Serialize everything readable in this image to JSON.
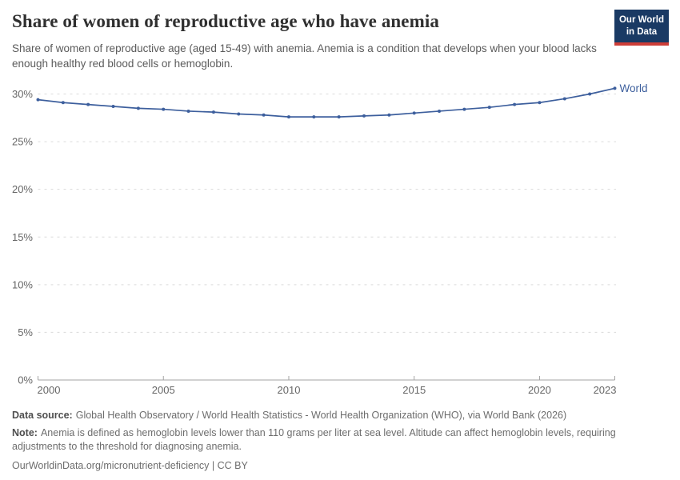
{
  "header": {
    "title": "Share of women of reproductive age who have anemia",
    "subtitle": "Share of women of reproductive age (aged 15-49) with anemia. Anemia is a condition that develops when your blood lacks enough healthy red blood cells or hemoglobin."
  },
  "logo": {
    "line1": "Our World",
    "line2": "in Data",
    "bg_color": "#1a3a64",
    "accent_color": "#cd3d37"
  },
  "chart_data": {
    "type": "line",
    "title": "Share of women of reproductive age who have anemia",
    "xlabel": "",
    "ylabel": "",
    "x": [
      2000,
      2001,
      2002,
      2003,
      2004,
      2005,
      2006,
      2007,
      2008,
      2009,
      2010,
      2011,
      2012,
      2013,
      2014,
      2015,
      2016,
      2017,
      2018,
      2019,
      2020,
      2021,
      2022,
      2023
    ],
    "series": [
      {
        "name": "World",
        "color": "#3d5f9d",
        "values": [
          29.4,
          29.1,
          28.9,
          28.7,
          28.5,
          28.4,
          28.2,
          28.1,
          27.9,
          27.8,
          27.6,
          27.6,
          27.6,
          27.7,
          27.8,
          28.0,
          28.2,
          28.4,
          28.6,
          28.9,
          29.1,
          29.5,
          30.0,
          30.6
        ]
      }
    ],
    "xlim": [
      2000,
      2023
    ],
    "ylim": [
      0,
      30
    ],
    "yticks": [
      0,
      5,
      10,
      15,
      20,
      25,
      30
    ],
    "ytick_suffix": "%",
    "xticks": [
      2000,
      2005,
      2010,
      2015,
      2020,
      2023
    ],
    "grid": "dashed horizontal gridlines",
    "legend_position": "end-of-line label"
  },
  "footer": {
    "datasource_label": "Data source:",
    "datasource_text": "Global Health Observatory / World Health Statistics - World Health Organization (WHO), via World Bank (2026)",
    "note_label": "Note:",
    "note_text": "Anemia is defined as hemoglobin levels lower than 110 grams per liter at sea level. Altitude can affect hemoglobin levels, requiring adjustments to the threshold for diagnosing anemia.",
    "license": "OurWorldinData.org/micronutrient-deficiency | CC BY"
  }
}
